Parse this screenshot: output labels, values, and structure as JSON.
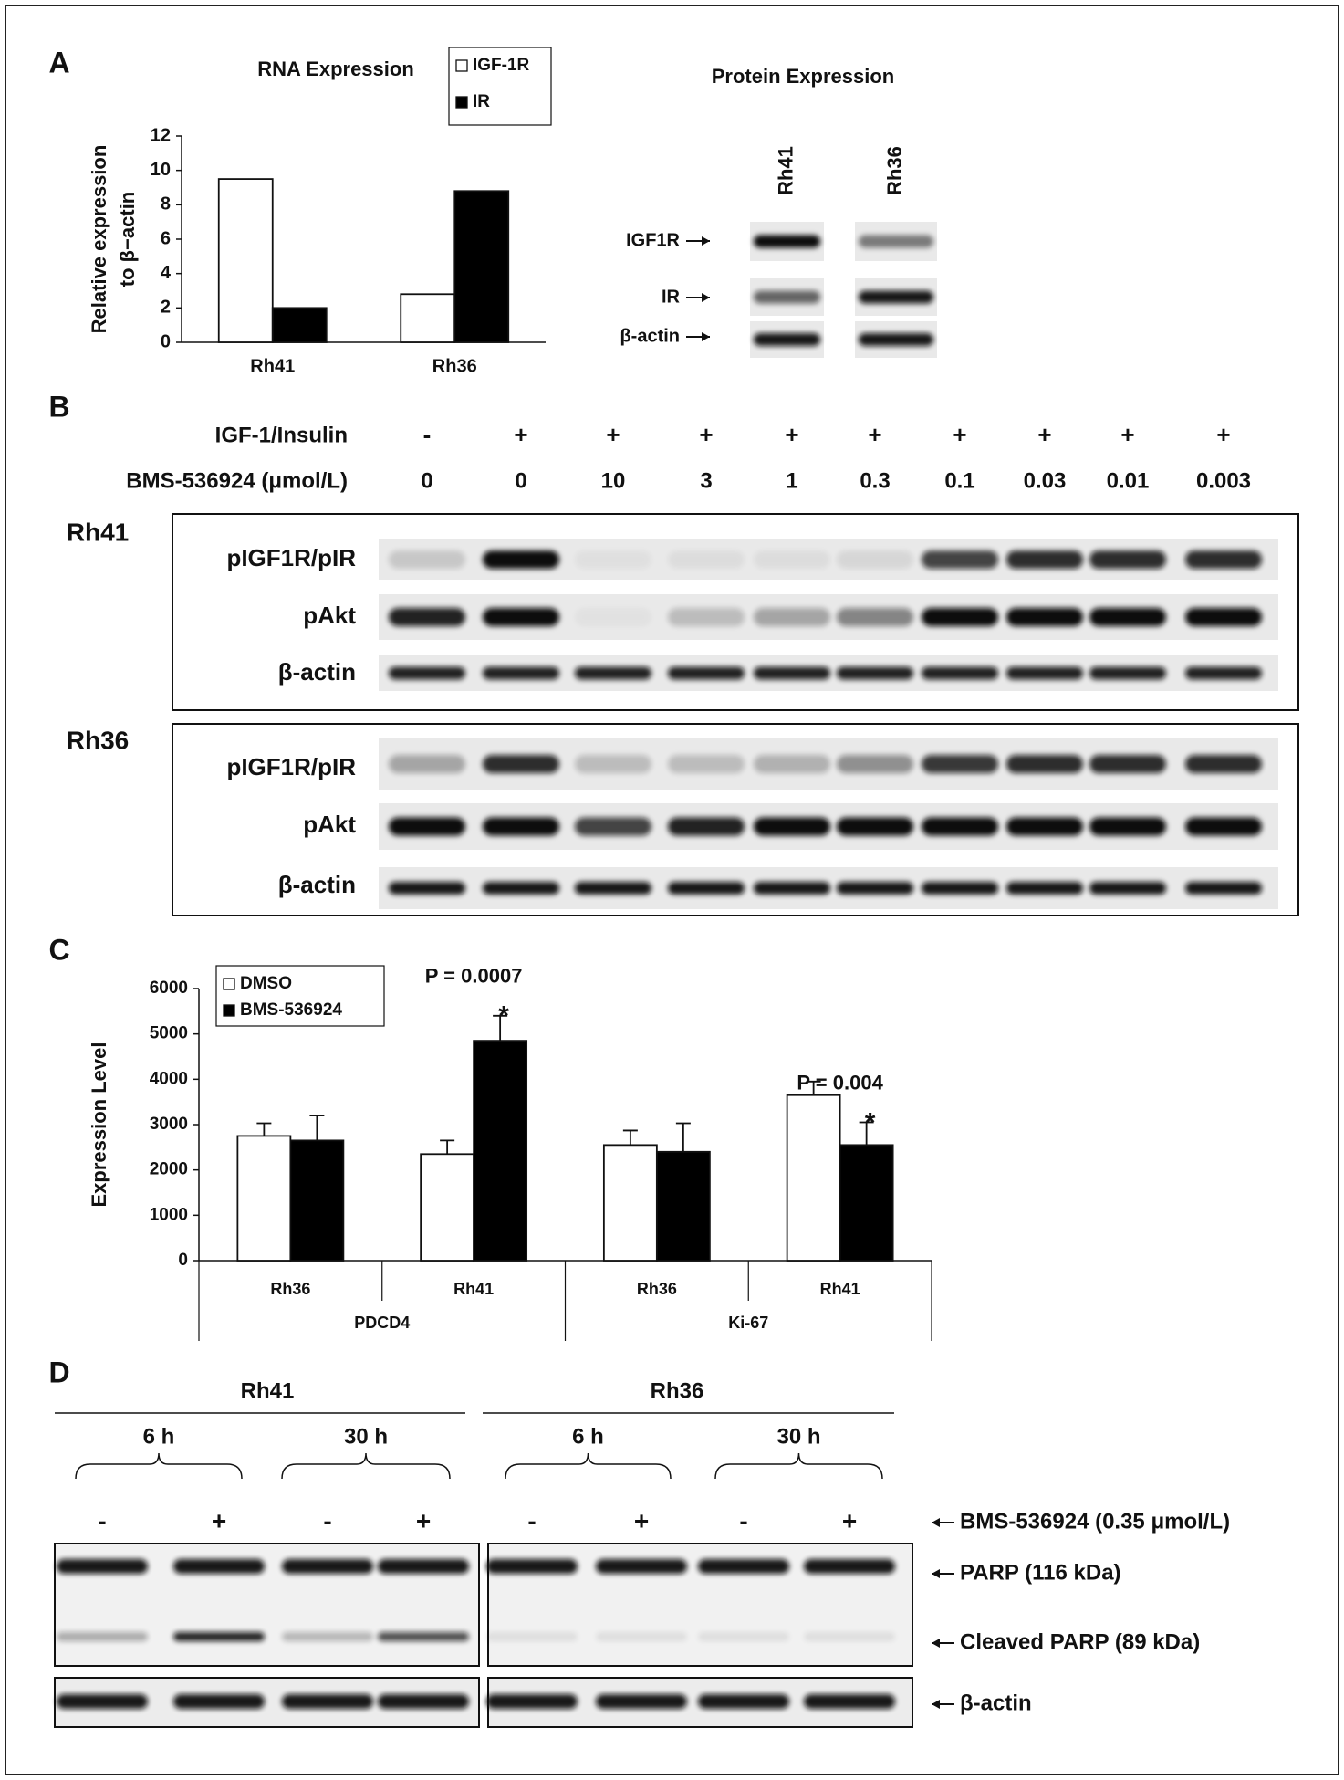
{
  "panel_labels": [
    "A",
    "B",
    "C",
    "D"
  ],
  "chart_data": [
    {
      "type": "bar",
      "title": "RNA Expression",
      "y_label": [
        "Relative expression",
        "to β−actin"
      ],
      "categories": [
        "Rh41",
        "Rh36"
      ],
      "series": [
        {
          "name": "IGF-1R",
          "color": "#ffffff",
          "values": [
            9.5,
            2.8
          ]
        },
        {
          "name": "IR",
          "color": "#000000",
          "values": [
            2,
            8.8
          ]
        }
      ],
      "ylim": [
        0,
        12
      ],
      "yticks": [
        0,
        2,
        4,
        6,
        8,
        10,
        12
      ],
      "legend": "upper right"
    },
    {
      "type": "bar",
      "y_label": [
        "Expression Level"
      ],
      "categories": [
        "Rh36",
        "Rh41",
        "Rh36",
        "Rh41"
      ],
      "groups": [
        "PDCD4",
        "Ki-67"
      ],
      "series": [
        {
          "name": "DMSO",
          "color": "#ffffff",
          "values": [
            2750,
            2350,
            2550,
            3650
          ],
          "error": [
            280,
            300,
            320,
            300
          ]
        },
        {
          "name": "BMS-536924",
          "color": "#000000",
          "values": [
            2650,
            4850,
            2400,
            2550
          ],
          "error": [
            550,
            550,
            630,
            500
          ]
        }
      ],
      "annotations": [
        "P = 0.0007",
        "*",
        "P = 0.004",
        "*"
      ],
      "ylim": [
        0,
        6000
      ],
      "yticks": [
        0,
        1000,
        2000,
        3000,
        4000,
        5000,
        6000
      ],
      "legend": "upper left"
    }
  ],
  "panel_a": {
    "title": "Protein Expression",
    "lanes": [
      "Rh41",
      "Rh36"
    ],
    "bands": [
      "IGF1R",
      "IR",
      "β-actin"
    ]
  },
  "panel_b": {
    "row_labels": [
      "IGF-1/Insulin",
      "BMS-536924 (μmol/L)"
    ],
    "insulin": [
      "-",
      "+",
      "+",
      "+",
      "+",
      "+",
      "+",
      "+",
      "+",
      "+"
    ],
    "dose": [
      "0",
      "0",
      "10",
      "3",
      "1",
      "0.3",
      "0.1",
      "0.03",
      "0.01",
      "0.003"
    ],
    "cell_lines": [
      {
        "name": "Rh41",
        "bands": [
          "pIGF1R/pIR",
          "pAkt",
          "β-actin"
        ]
      },
      {
        "name": "Rh36",
        "bands": [
          "pIGF1R/pIR",
          "pAkt",
          "β-actin"
        ]
      }
    ]
  },
  "panel_d": {
    "cell_lines": [
      {
        "name": "Rh41",
        "times": [
          "6 h",
          "30 h"
        ]
      },
      {
        "name": "Rh36",
        "times": [
          "6 h",
          "30 h"
        ]
      }
    ],
    "treatment": [
      "-",
      "+",
      "-",
      "+",
      "-",
      "+",
      "-",
      "+"
    ],
    "treatment_label": "BMS-536924 (0.35 μmol/L)",
    "bands": [
      "PARP (116 kDa)",
      "Cleaved PARP (89 kDa)",
      "β-actin"
    ]
  }
}
